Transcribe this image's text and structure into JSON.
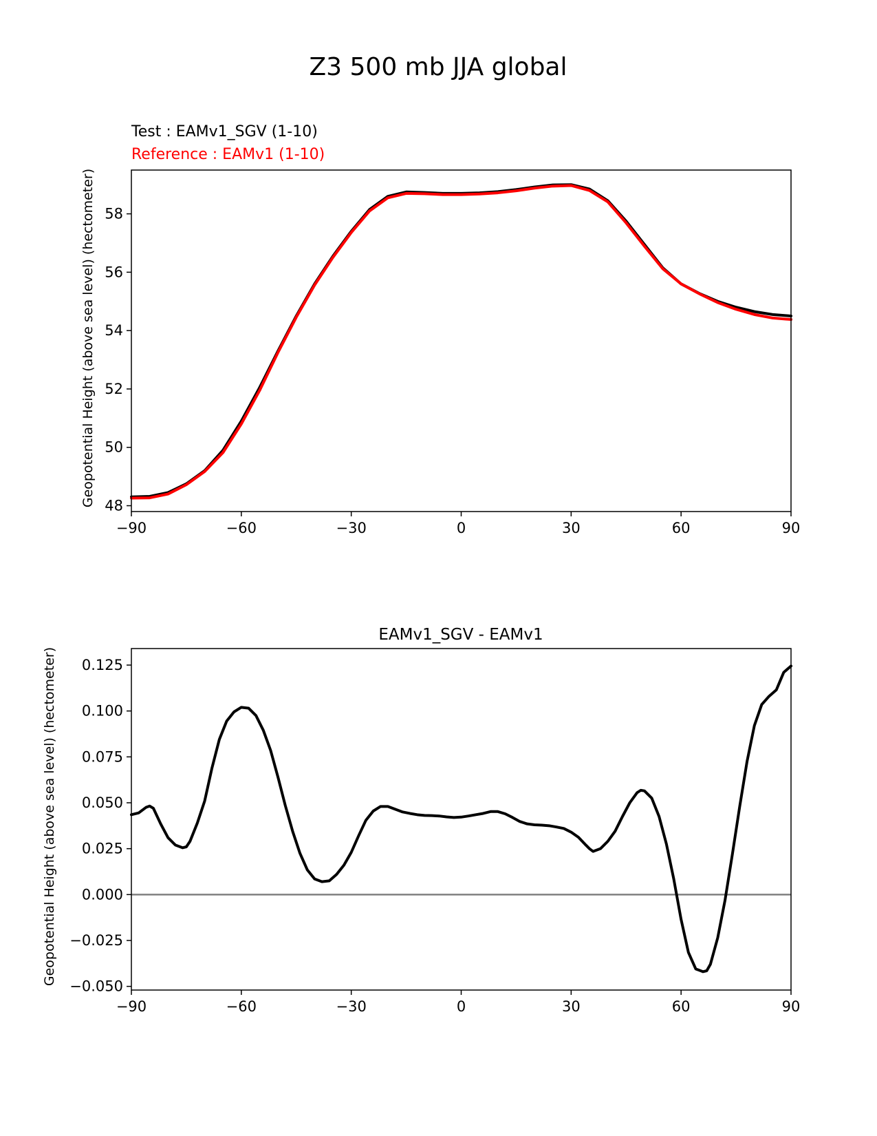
{
  "figure_title": "Z3 500 mb JJA global",
  "chart_data": [
    {
      "type": "line",
      "test_label": "Test : EAMv1_SGV (1-10)",
      "reference_label": "Reference : EAMv1 (1-10)",
      "xlabel": "",
      "ylabel": "Geopotential Height (above sea level) (hectometer)",
      "xlim": [
        -90,
        90
      ],
      "ylim": [
        47.8,
        59.5
      ],
      "xticks": [
        -90,
        -60,
        -30,
        0,
        30,
        60,
        90
      ],
      "xtick_labels": [
        "−90",
        "−60",
        "−30",
        "0",
        "30",
        "60",
        "90"
      ],
      "yticks": [
        48,
        50,
        52,
        54,
        56,
        58
      ],
      "ytick_labels": [
        "48",
        "50",
        "52",
        "54",
        "56",
        "58"
      ],
      "grid": false,
      "colors": {
        "test": "#000000",
        "reference": "#ff0000"
      },
      "x": [
        -90,
        -85,
        -80,
        -75,
        -70,
        -65,
        -60,
        -55,
        -50,
        -45,
        -40,
        -35,
        -30,
        -25,
        -20,
        -15,
        -10,
        -5,
        0,
        5,
        10,
        15,
        20,
        25,
        30,
        35,
        40,
        45,
        50,
        55,
        60,
        65,
        70,
        75,
        80,
        85,
        90
      ],
      "series": [
        {
          "name": "Test : EAMv1_SGV (1-10)",
          "color": "#000000",
          "values": [
            48.3,
            48.32,
            48.45,
            48.75,
            49.2,
            49.9,
            50.9,
            52.05,
            53.3,
            54.5,
            55.6,
            56.55,
            57.4,
            58.15,
            58.6,
            58.75,
            58.73,
            58.7,
            58.7,
            58.72,
            58.76,
            58.83,
            58.92,
            58.99,
            59.0,
            58.85,
            58.45,
            57.75,
            56.95,
            56.15,
            55.6,
            55.27,
            55.0,
            54.8,
            54.65,
            54.55,
            54.5
          ]
        },
        {
          "name": "Reference : EAMv1 (1-10)",
          "color": "#ff0000",
          "values": [
            48.26,
            48.27,
            48.4,
            48.72,
            49.17,
            49.82,
            50.8,
            51.95,
            53.25,
            54.46,
            55.56,
            56.51,
            57.36,
            58.1,
            58.55,
            58.7,
            58.69,
            58.66,
            58.66,
            58.68,
            58.72,
            58.79,
            58.88,
            58.95,
            58.97,
            58.8,
            58.41,
            57.69,
            56.89,
            56.12,
            55.6,
            55.26,
            54.96,
            54.73,
            54.55,
            54.43,
            54.38
          ]
        }
      ]
    },
    {
      "type": "line",
      "title": "EAMv1_SGV - EAMv1",
      "xlabel": "",
      "ylabel": "Geopotential Height (above sea level) (hectometer)",
      "xlim": [
        -90,
        90
      ],
      "ylim": [
        -0.052,
        0.134
      ],
      "xticks": [
        -90,
        -60,
        -30,
        0,
        30,
        60,
        90
      ],
      "xtick_labels": [
        "−90",
        "−60",
        "−30",
        "0",
        "30",
        "60",
        "90"
      ],
      "yticks": [
        -0.05,
        -0.025,
        0.0,
        0.025,
        0.05,
        0.075,
        0.1,
        0.125
      ],
      "ytick_labels": [
        "−0.050",
        "−0.025",
        "0.000",
        "0.025",
        "0.050",
        "0.075",
        "0.100",
        "0.125"
      ],
      "grid": false,
      "zero_line_color": "#808080",
      "x": [
        -90,
        -88,
        -86,
        -85,
        -84,
        -82,
        -80,
        -78,
        -76,
        -75,
        -74,
        -72,
        -70,
        -68,
        -66,
        -64,
        -62,
        -60,
        -58,
        -56,
        -54,
        -52,
        -50,
        -48,
        -46,
        -44,
        -42,
        -40,
        -38,
        -36,
        -34,
        -32,
        -30,
        -28,
        -26,
        -24,
        -22,
        -20,
        -18,
        -16,
        -14,
        -12,
        -10,
        -8,
        -6,
        -4,
        -2,
        0,
        2,
        4,
        6,
        8,
        10,
        12,
        14,
        16,
        18,
        20,
        22,
        24,
        26,
        28,
        30,
        32,
        34,
        35,
        36,
        38,
        40,
        42,
        44,
        46,
        48,
        49,
        50,
        52,
        54,
        56,
        58,
        60,
        62,
        64,
        66,
        67,
        68,
        70,
        72,
        74,
        76,
        78,
        80,
        82,
        84,
        86,
        88,
        90
      ],
      "series": [
        {
          "name": "EAMv1_SGV - EAMv1",
          "color": "#000000",
          "values": [
            0.0435,
            0.0445,
            0.0475,
            0.0482,
            0.047,
            0.0385,
            0.031,
            0.027,
            0.0255,
            0.026,
            0.029,
            0.039,
            0.051,
            0.069,
            0.0845,
            0.0945,
            0.0995,
            0.102,
            0.1015,
            0.0975,
            0.0895,
            0.0785,
            0.064,
            0.0485,
            0.0345,
            0.0225,
            0.0135,
            0.0085,
            0.007,
            0.0075,
            0.011,
            0.016,
            0.023,
            0.032,
            0.0405,
            0.0455,
            0.048,
            0.048,
            0.0465,
            0.045,
            0.0442,
            0.0435,
            0.0431,
            0.043,
            0.0428,
            0.0423,
            0.042,
            0.0422,
            0.0428,
            0.0435,
            0.0442,
            0.0452,
            0.0452,
            0.044,
            0.042,
            0.0398,
            0.0385,
            0.038,
            0.0378,
            0.0375,
            0.0368,
            0.036,
            0.034,
            0.0312,
            0.027,
            0.025,
            0.0235,
            0.025,
            0.029,
            0.0345,
            0.0425,
            0.05,
            0.0555,
            0.0568,
            0.0565,
            0.0525,
            0.0425,
            0.0275,
            0.0085,
            -0.0135,
            -0.0315,
            -0.0405,
            -0.042,
            -0.0415,
            -0.038,
            -0.0235,
            -0.003,
            0.022,
            0.048,
            0.0725,
            0.092,
            0.1035,
            0.108,
            0.1115,
            0.121,
            0.1245
          ]
        }
      ]
    }
  ]
}
